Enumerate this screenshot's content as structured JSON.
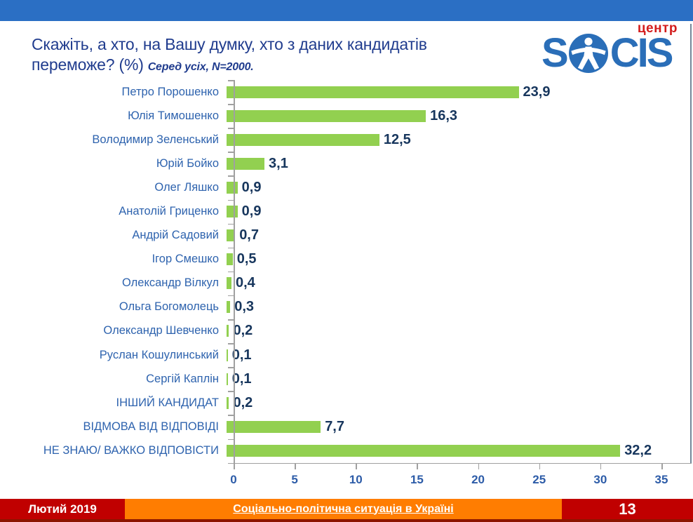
{
  "header": {
    "title_line1": "Скажіть, а хто, на Вашу думку, хто з даних кандидатів",
    "title_line2_main": "переможе? (%)",
    "title_note": "Серед усіх, N=2000.",
    "logo_text_s1": "S",
    "logo_text_cis": "CIS",
    "logo_sub": "центр"
  },
  "chart_data": {
    "type": "bar",
    "orientation": "horizontal",
    "title": "Скажіть, а хто, на Вашу думку, хто з даних кандидатів переможе? (%) Серед усіх, N=2000.",
    "categories": [
      "Петро Порошенко",
      "Юлія Тимошенко",
      "Володимир Зеленський",
      "Юрій Бойко",
      "Олег Ляшко",
      "Анатолій Гриценко",
      "Андрій Садовий",
      "Ігор Смешко",
      "Олександр Вілкул",
      "Ольга Богомолець",
      "Олександр Шевченко",
      "Руслан Кошулинський",
      "Сергій Каплін",
      "ІНШИЙ КАНДИДАТ",
      "ВІДМОВА ВІД ВІДПОВІДІ",
      "НЕ ЗНАЮ/ ВАЖКО ВІДПОВІСТИ"
    ],
    "values": [
      23.9,
      16.3,
      12.5,
      3.1,
      0.9,
      0.9,
      0.7,
      0.5,
      0.4,
      0.3,
      0.2,
      0.1,
      0.1,
      0.2,
      7.7,
      32.2
    ],
    "value_labels": [
      "23,9",
      "16,3",
      "12,5",
      "3,1",
      "0,9",
      "0,9",
      "0,7",
      "0,5",
      "0,4",
      "0,3",
      "0,2",
      "0,1",
      "0,1",
      "0,2",
      "7,7",
      "32,2"
    ],
    "xlim": [
      0,
      35
    ],
    "x_ticks": [
      0,
      5,
      10,
      15,
      20,
      25,
      30,
      35
    ],
    "grid": false,
    "legend": false,
    "bar_color": "#92d050"
  },
  "footer": {
    "date": "Лютий 2019",
    "report_title": "Соціально-політична ситуація в Україні",
    "page_number": "13"
  },
  "colors": {
    "top_bar": "#2b6fc4",
    "title_text": "#203c8e",
    "category_text": "#2e63ae",
    "value_text": "#17365d",
    "bar_green": "#92d050",
    "footer_red": "#c00000",
    "footer_orange": "#ff7d01",
    "logo_blue": "#2a6eb8",
    "logo_red": "#d31c1c"
  }
}
